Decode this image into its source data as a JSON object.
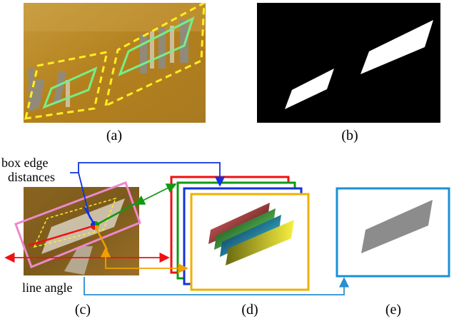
{
  "panels": {
    "a": {
      "label": "(a)"
    },
    "b": {
      "label": "(b)"
    },
    "c": {
      "label": "(c)"
    },
    "d": {
      "label": "(d)"
    },
    "e": {
      "label": "(e)"
    }
  },
  "annotations": {
    "box_edge_line1": "box edge",
    "box_edge_line2": "distances",
    "line_angle": "line angle"
  },
  "colors": {
    "box_outline": "#ffee22",
    "inner_box": "#77ee88",
    "arrow_blue": "#1133dd",
    "arrow_green": "#119911",
    "arrow_red": "#ee1111",
    "arrow_orange": "#f0a000",
    "arrow_cyan": "#2a8fd0",
    "pink_box": "#ee88cc",
    "output_frame": "#1a90d8"
  }
}
